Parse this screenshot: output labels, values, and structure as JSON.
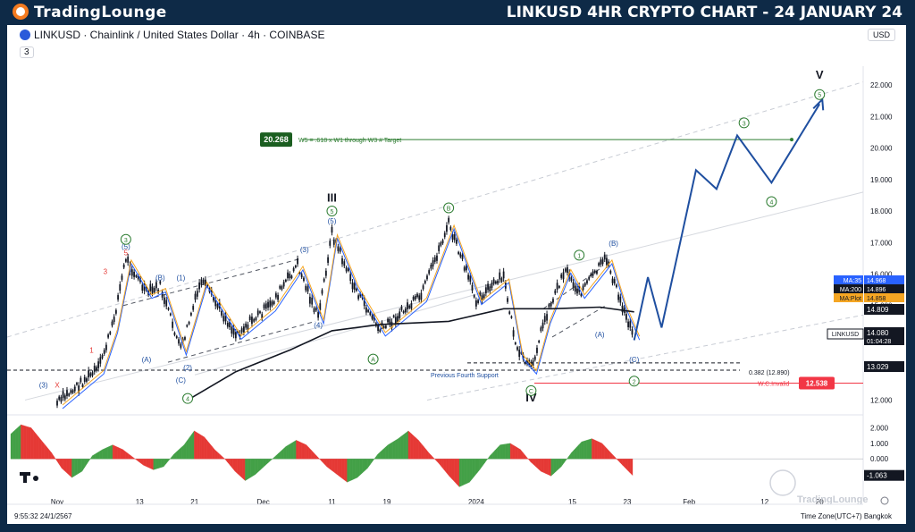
{
  "header": {
    "brand": "TradingLounge",
    "title": "LINKUSD 4HR CRYPTO CHART - 24 JANUARY 24"
  },
  "toolbar": {
    "symbol_line": "LINKUSD · Chainlink / United States Dollar · 4h · COINBASE",
    "layers": "3",
    "currency": "USD"
  },
  "chart_data": {
    "type": "line",
    "title": "LINKUSD · Chainlink / United States Dollar · 4h · COINBASE",
    "x_ticks": [
      "Nov",
      "13",
      "21",
      "Dec",
      "11",
      "19",
      "2024",
      "15",
      "23",
      "Feb",
      "12",
      "20"
    ],
    "y_ticks": [
      12.0,
      13.0,
      14.0,
      15.0,
      16.0,
      17.0,
      18.0,
      19.0,
      20.0,
      21.0,
      22.0
    ],
    "ylim": [
      11.7,
      22.6
    ],
    "price_path": [
      {
        "x": "Nov",
        "y": 11.9
      },
      {
        "x": "Nov 7",
        "y": 13.0
      },
      {
        "x": "Nov 9",
        "y": 14.3
      },
      {
        "x": "Nov 11",
        "y": 16.5
      },
      {
        "x": "Nov 14",
        "y": 15.4
      },
      {
        "x": "Nov 16",
        "y": 15.6
      },
      {
        "x": "Nov 19",
        "y": 13.6
      },
      {
        "x": "Nov 22",
        "y": 15.8
      },
      {
        "x": "Nov 27",
        "y": 14.1
      },
      {
        "x": "Dec 2",
        "y": 15.0
      },
      {
        "x": "Dec 6",
        "y": 16.3
      },
      {
        "x": "Dec 9",
        "y": 14.6
      },
      {
        "x": "Dec 11",
        "y": 17.3
      },
      {
        "x": "Dec 14",
        "y": 15.7
      },
      {
        "x": "Dec 18",
        "y": 14.2
      },
      {
        "x": "Dec 24",
        "y": 15.3
      },
      {
        "x": "Dec 28",
        "y": 17.6
      },
      {
        "x": "Jan 1",
        "y": 15.2
      },
      {
        "x": "Jan 5",
        "y": 15.9
      },
      {
        "x": "Jan 7",
        "y": 13.5
      },
      {
        "x": "Jan 9",
        "y": 13.0
      },
      {
        "x": "Jan 11",
        "y": 14.6
      },
      {
        "x": "Jan 14",
        "y": 16.2
      },
      {
        "x": "Jan 16",
        "y": 15.4
      },
      {
        "x": "Jan 20",
        "y": 16.5
      },
      {
        "x": "Jan 22",
        "y": 15.1
      },
      {
        "x": "Jan 24",
        "y": 14.08
      }
    ],
    "projection_path": [
      {
        "x": "Jan 24",
        "y": 13.9
      },
      {
        "x": "Jan 26",
        "y": 15.9
      },
      {
        "x": "Jan 28",
        "y": 14.3
      },
      {
        "x": "Feb 2",
        "y": 19.3
      },
      {
        "x": "Feb 5",
        "y": 18.7
      },
      {
        "x": "Feb 8",
        "y": 20.4
      },
      {
        "x": "Feb 13",
        "y": 18.9
      },
      {
        "x": "Feb 20",
        "y": 21.4
      }
    ],
    "ma_lines": [
      {
        "name": "MA:35",
        "value": 14.968,
        "color": "#2962ff"
      },
      {
        "name": "MA:200",
        "value": 14.896,
        "color": "#131722"
      },
      {
        "name": "MA:Plot",
        "value": 14.858,
        "color": "#f5a623"
      }
    ],
    "price_labels": [
      {
        "value": 14.809,
        "text": "14.809",
        "color": "#131722"
      },
      {
        "value": 14.08,
        "text": "14.080",
        "sub": "01:04:28",
        "color": "#131722"
      },
      {
        "value": 13.029,
        "text": "13.029",
        "color": "#131722"
      },
      {
        "value": 12.538,
        "text": "12.538",
        "color": "#f23645"
      }
    ],
    "symbol_tag": "LINKUSD",
    "target": {
      "value": 20.268,
      "text": "20.268",
      "label": "W5 = .618 x W1 through W3 # Target"
    },
    "annotations": [
      {
        "text": "0.382 (12.890)",
        "value": 12.89
      },
      {
        "text": "Previous Fourth Support",
        "value": 12.8
      },
      {
        "text": "W.C.Invalid",
        "value": 12.538
      }
    ],
    "wave_labels": [
      {
        "text": "III",
        "x": "Dec 11",
        "y": 18.3
      },
      {
        "text": "IV",
        "x": "Jan 9",
        "y": 11.95
      },
      {
        "text": "V",
        "x": "Feb 20",
        "y": 22.2
      },
      {
        "text": "(5)",
        "x": "Dec 11",
        "y": 17.6
      },
      {
        "text": "(3)",
        "x": "Dec 7",
        "y": 16.7
      },
      {
        "text": "(4)",
        "x": "Dec 9",
        "y": 14.3
      },
      {
        "text": "(B)",
        "x": "Nov 16",
        "y": 15.8
      },
      {
        "text": "(1)",
        "x": "Nov 19",
        "y": 15.8
      },
      {
        "text": "(A)",
        "x": "Nov 14",
        "y": 13.2
      },
      {
        "text": "(2)",
        "x": "Nov 20",
        "y": 12.95
      },
      {
        "text": "(C)",
        "x": "Nov 19",
        "y": 12.55
      },
      {
        "text": "(5)",
        "x": "Nov 11",
        "y": 16.8
      },
      {
        "text": "(A)",
        "x": "Jan 19",
        "y": 14.0
      },
      {
        "text": "(B)",
        "x": "Jan 21",
        "y": 16.9
      },
      {
        "text": "(C)",
        "x": "Jan 24",
        "y": 13.2
      },
      {
        "text": "5",
        "x": "Nov 11",
        "y": 16.6
      },
      {
        "text": "3",
        "x": "Nov 8",
        "y": 16.0
      },
      {
        "text": "1",
        "x": "Nov 6",
        "y": 13.5
      },
      {
        "text": "X",
        "x": "Nov 1",
        "y": 12.4
      },
      {
        "text": "(3)",
        "x": "Oct 30",
        "y": 12.4
      }
    ],
    "circled_labels": [
      {
        "text": "3",
        "x": "Nov 11",
        "y": 17.1
      },
      {
        "text": "4",
        "x": "Nov 20",
        "y": 12.05
      },
      {
        "text": "5",
        "x": "Dec 11",
        "y": 18.0
      },
      {
        "text": "A",
        "x": "Dec 17",
        "y": 13.3
      },
      {
        "text": "B",
        "x": "Dec 28",
        "y": 18.1
      },
      {
        "text": "C",
        "x": "Jan 9",
        "y": 12.3
      },
      {
        "text": "1",
        "x": "Jan 16",
        "y": 16.6
      },
      {
        "text": "2",
        "x": "Jan 24",
        "y": 12.6
      },
      {
        "text": "3",
        "x": "Feb 9",
        "y": 20.8
      },
      {
        "text": "4",
        "x": "Feb 13",
        "y": 18.3
      },
      {
        "text": "5",
        "x": "Feb 20",
        "y": 21.7
      }
    ],
    "oscillator": {
      "value": -1.063,
      "y_ticks": [
        2.0,
        1.0,
        0.0
      ],
      "values": [
        1.6,
        2.2,
        2.0,
        1.2,
        0.4,
        -0.6,
        -1.2,
        -0.8,
        0.2,
        0.6,
        0.9,
        0.6,
        0.1,
        -0.4,
        -0.7,
        -0.5,
        0.3,
        0.9,
        1.8,
        1.4,
        0.6,
        0.0,
        -0.8,
        -1.4,
        -1.0,
        -0.4,
        0.2,
        0.8,
        1.2,
        0.9,
        0.2,
        -0.5,
        -1.0,
        -1.5,
        -1.2,
        -0.6,
        0.3,
        0.9,
        1.3,
        1.8,
        1.2,
        0.4,
        -0.3,
        -1.1,
        -1.8,
        -1.5,
        -0.7,
        0.2,
        0.9,
        1.0,
        0.6,
        -0.2,
        -0.8,
        -1.1,
        -0.5,
        0.4,
        1.1,
        1.3,
        1.0,
        0.3,
        -0.4,
        -1.063
      ]
    },
    "footer": {
      "time": "9:55:32 24/1/2567",
      "timezone": "Time Zone(UTC+7) Bangkok"
    },
    "watermark": "TradingLounge",
    "grid": false
  }
}
